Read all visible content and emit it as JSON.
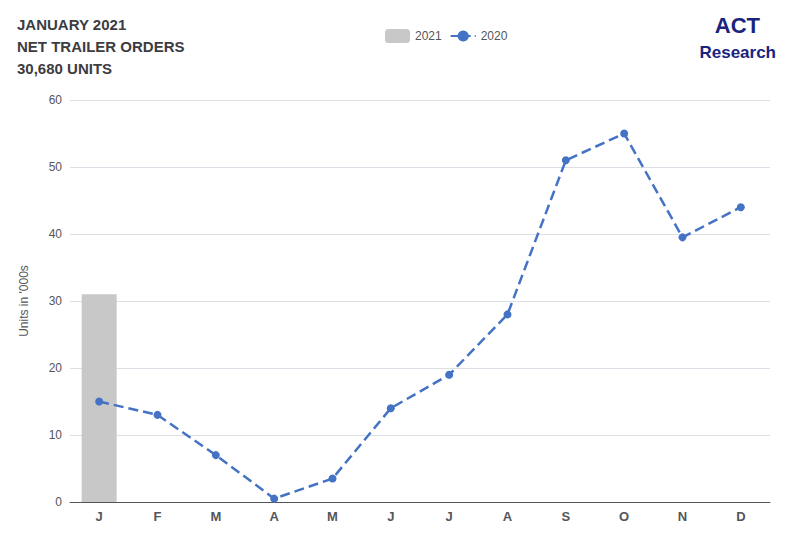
{
  "chart_data": {
    "type": "bar",
    "title": "JANUARY 2021\nNET TRAILER ORDERS\n30,680 UNITS",
    "annotations": [
      "ACT",
      "Research"
    ],
    "ylabel": "Units in '000s",
    "categories": [
      "J",
      "F",
      "M",
      "A",
      "M",
      "J",
      "J",
      "A",
      "S",
      "O",
      "N",
      "D"
    ],
    "series": [
      {
        "name": "2021",
        "type": "bar",
        "color": "#C8C8C8",
        "values": [
          31,
          null,
          null,
          null,
          null,
          null,
          null,
          null,
          null,
          null,
          null,
          null
        ]
      },
      {
        "name": "2020",
        "type": "line",
        "color": "#4472C4",
        "marker": "circle",
        "line_style": "dashed",
        "values": [
          15,
          13,
          7,
          0.5,
          3.5,
          14,
          19,
          28,
          51,
          55,
          39.5,
          44
        ]
      }
    ],
    "ylim": [
      0,
      60
    ],
    "yticks": [
      0,
      10,
      20,
      30,
      40,
      50,
      60
    ],
    "grid": true,
    "legend": "top"
  }
}
